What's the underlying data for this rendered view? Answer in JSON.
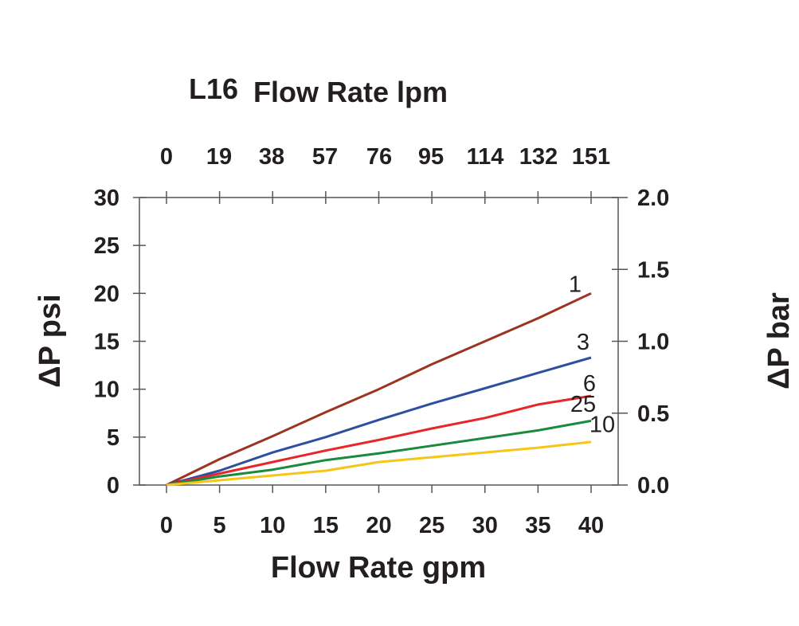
{
  "chart_data": {
    "type": "line",
    "title_prefix": "L16",
    "title": "Flow Rate lpm",
    "xlabel": "Flow Rate gpm",
    "ylabel": "ΔP psi",
    "y2label": "ΔP bar",
    "xlim": [
      0,
      40
    ],
    "ylim": [
      0,
      30
    ],
    "y2lim": [
      0,
      2.0
    ],
    "x_ticks": [
      "0",
      "5",
      "10",
      "15",
      "20",
      "25",
      "30",
      "35",
      "40"
    ],
    "x_ticks_top": [
      "0",
      "19",
      "38",
      "57",
      "76",
      "95",
      "114",
      "132",
      "151"
    ],
    "y_ticks": [
      "0",
      "5",
      "10",
      "15",
      "20",
      "25",
      "30"
    ],
    "y2_ticks": [
      "0.0",
      "0.5",
      "1.0",
      "1.5",
      "2.0"
    ],
    "grid": false,
    "x": [
      0,
      5,
      10,
      15,
      20,
      25,
      30,
      35,
      40
    ],
    "series": [
      {
        "name": "1",
        "color": "#9b3520",
        "values": [
          0,
          2.7,
          5.1,
          7.6,
          10.0,
          12.6,
          15.0,
          17.4,
          20.0
        ]
      },
      {
        "name": "3",
        "color": "#2e4f9f",
        "values": [
          0,
          1.5,
          3.4,
          5.0,
          6.8,
          8.5,
          10.1,
          11.7,
          13.3
        ]
      },
      {
        "name": "6",
        "color": "#e8262a",
        "values": [
          0,
          1.2,
          2.4,
          3.6,
          4.7,
          5.9,
          7.0,
          8.4,
          9.3
        ]
      },
      {
        "name": "10",
        "color": "#1a8a3c",
        "values": [
          0,
          0.9,
          1.6,
          2.6,
          3.3,
          4.1,
          4.9,
          5.7,
          6.7
        ]
      },
      {
        "name": "25",
        "color": "#f5c518",
        "values": [
          0,
          0.5,
          1.0,
          1.5,
          2.4,
          2.9,
          3.4,
          3.9,
          4.5
        ]
      }
    ]
  }
}
